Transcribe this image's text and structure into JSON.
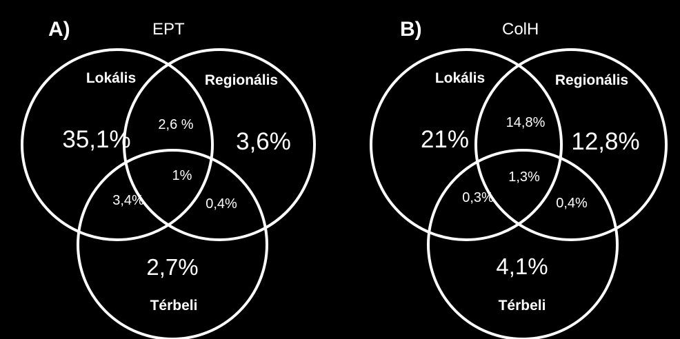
{
  "panels": [
    {
      "letter": "A)",
      "title": "EPT",
      "sets": {
        "a": "Lokális",
        "b": "Regionális",
        "c": "Térbeli"
      },
      "values": {
        "a_only": "35,1%",
        "b_only": "3,6%",
        "c_only": "2,7%",
        "ab": "2,6 %",
        "ac": "3,4%",
        "bc": "0,4%",
        "abc": "1%"
      }
    },
    {
      "letter": "B)",
      "title": "ColH",
      "sets": {
        "a": "Lokális",
        "b": "Regionális",
        "c": "Térbeli"
      },
      "values": {
        "a_only": "21%",
        "b_only": "12,8%",
        "c_only": "4,1%",
        "ab": "14,8%",
        "ac": "0,3%",
        "bc": "0,4%",
        "abc": "1,3%"
      }
    }
  ],
  "colors": {
    "background": "#000000",
    "foreground": "#ffffff"
  }
}
